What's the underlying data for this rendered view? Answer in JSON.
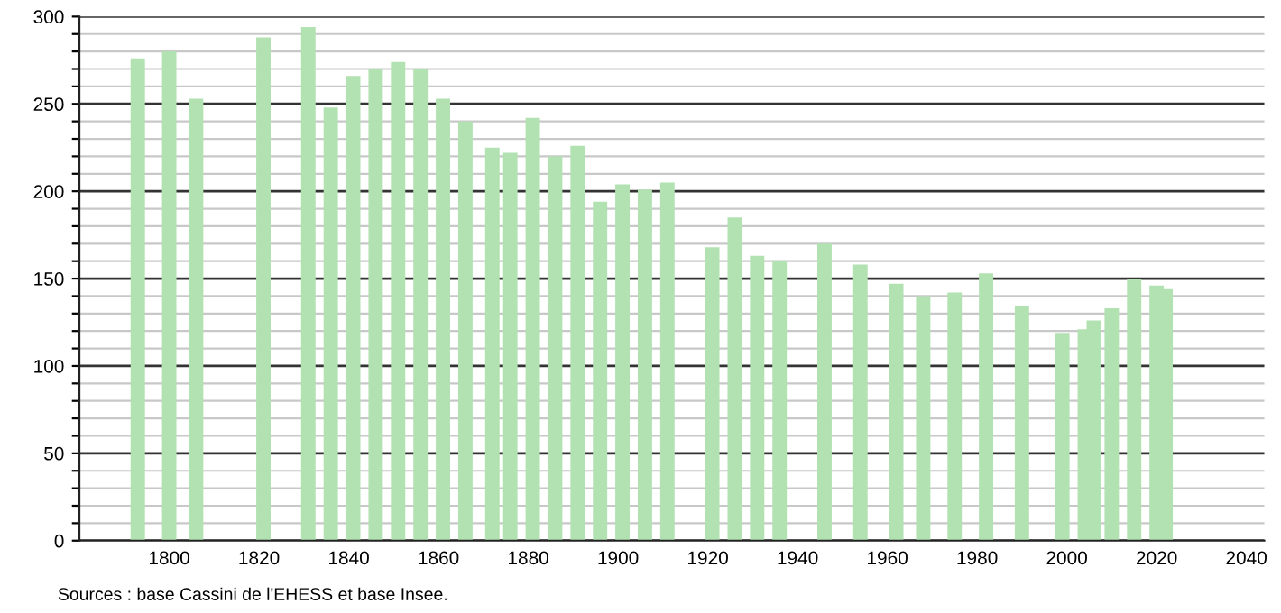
{
  "chart_data": {
    "type": "bar",
    "x": [
      1793,
      1800,
      1806,
      1821,
      1831,
      1836,
      1841,
      1846,
      1851,
      1856,
      1861,
      1866,
      1872,
      1876,
      1881,
      1886,
      1891,
      1896,
      1901,
      1906,
      1911,
      1921,
      1926,
      1931,
      1936,
      1946,
      1954,
      1962,
      1968,
      1975,
      1982,
      1990,
      1999,
      2004,
      2006,
      2010,
      2015,
      2020,
      2022
    ],
    "values": [
      276,
      280,
      253,
      288,
      294,
      248,
      266,
      270,
      274,
      270,
      253,
      240,
      225,
      222,
      242,
      220,
      226,
      194,
      204,
      201,
      205,
      168,
      185,
      163,
      160,
      170,
      158,
      147,
      140,
      142,
      153,
      134,
      119,
      121,
      126,
      133,
      150,
      146,
      144
    ],
    "color": "#b2e2b2",
    "xlim": [
      1780,
      2044
    ],
    "xticks": [
      1800,
      1820,
      1840,
      1860,
      1880,
      1900,
      1920,
      1940,
      1960,
      1980,
      2000,
      2020,
      2040
    ],
    "ylim": [
      0,
      300
    ],
    "yticks": [
      0,
      {
        "value": 10,
        "label": null
      },
      {
        "value": 20,
        "label": null
      },
      {
        "value": 30,
        "label": null
      },
      {
        "value": 40,
        "label": null
      },
      50,
      {
        "value": 60,
        "label": null
      },
      {
        "value": 70,
        "label": null
      },
      {
        "value": 80,
        "label": null
      },
      {
        "value": 90,
        "label": null
      },
      100,
      {
        "value": 110,
        "label": null
      },
      {
        "value": 120,
        "label": null
      },
      {
        "value": 130,
        "label": null
      },
      {
        "value": 140,
        "label": null
      },
      150,
      {
        "value": 160,
        "label": null
      },
      {
        "value": 170,
        "label": null
      },
      {
        "value": 180,
        "label": null
      },
      {
        "value": 190,
        "label": null
      },
      200,
      {
        "value": 210,
        "label": null
      },
      {
        "value": 220,
        "label": null
      },
      {
        "value": 230,
        "label": null
      },
      {
        "value": 240,
        "label": null
      },
      250,
      {
        "value": 260,
        "label": null
      },
      {
        "value": 270,
        "label": null
      },
      {
        "value": 280,
        "label": null
      },
      {
        "value": 290,
        "label": null
      },
      300
    ],
    "grid": "y",
    "annotations": [
      "Sources : base Cassini de l'EHESS et base Insee."
    ]
  }
}
